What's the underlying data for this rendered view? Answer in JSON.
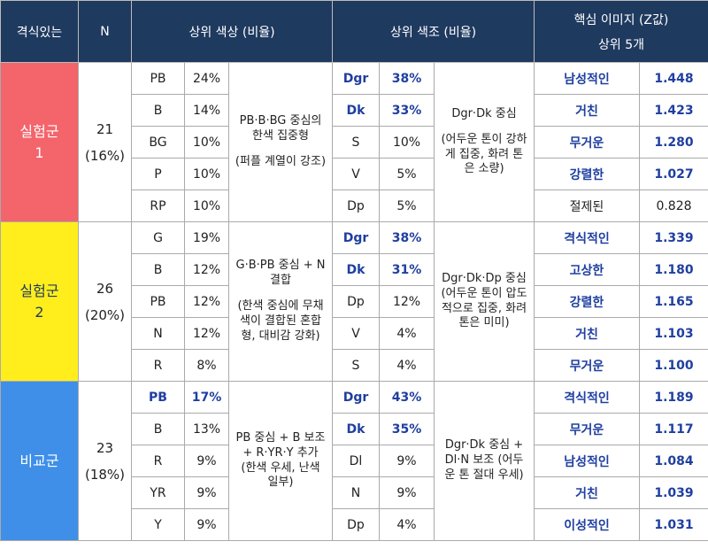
{
  "header": {
    "group": "격식있는",
    "n": "N",
    "colors": "상위 색상 (비율)",
    "tones": "상위 색조 (비율)",
    "images": "핵심 이미지 (Z값)",
    "images_sub": "상위 5개"
  },
  "groups": [
    {
      "label": [
        "실험군",
        "1"
      ],
      "n": "21",
      "n_pct": "(16%)",
      "colors": [
        [
          "PB",
          "24%"
        ],
        [
          "B",
          "14%"
        ],
        [
          "BG",
          "10%"
        ],
        [
          "P",
          "10%"
        ],
        [
          "RP",
          "10%"
        ]
      ],
      "color_desc": [
        "PB·B·BG 중심의 한색 집중형",
        "(퍼플 계열이 강조)"
      ],
      "tones": [
        [
          "Dgr",
          "38%"
        ],
        [
          "Dk",
          "33%"
        ],
        [
          "S",
          "10%"
        ],
        [
          "V",
          "5%"
        ],
        [
          "Dp",
          "5%"
        ]
      ],
      "tone_desc": [
        "Dgr·Dk 중심",
        "(어두운 톤이 강하게 집중, 화려 톤은 소량)"
      ],
      "images": [
        [
          "남성적인",
          "1.448"
        ],
        [
          "거친",
          "1.423"
        ],
        [
          "무거운",
          "1.280"
        ],
        [
          "강렬한",
          "1.027"
        ],
        [
          "절제된",
          "0.828"
        ]
      ]
    },
    {
      "label": [
        "실험군",
        "2"
      ],
      "n": "26",
      "n_pct": "(20%)",
      "colors": [
        [
          "G",
          "19%"
        ],
        [
          "B",
          "12%"
        ],
        [
          "PB",
          "12%"
        ],
        [
          "N",
          "12%"
        ],
        [
          "R",
          "8%"
        ]
      ],
      "color_desc": [
        "G·B·PB 중심 + N 결합",
        "(한색 중심에 무채색이 결합된 혼합형, 대비감 강화)"
      ],
      "tones": [
        [
          "Dgr",
          "38%"
        ],
        [
          "Dk",
          "31%"
        ],
        [
          "Dp",
          "12%"
        ],
        [
          "V",
          "4%"
        ],
        [
          "S",
          "4%"
        ]
      ],
      "tone_desc": [
        "Dgr·Dk·Dp 중심 (어두운 톤이 압도적으로 집중, 화려 톤은 미미)"
      ],
      "images": [
        [
          "격식적인",
          "1.339"
        ],
        [
          "고상한",
          "1.180"
        ],
        [
          "강렬한",
          "1.165"
        ],
        [
          "거친",
          "1.103"
        ],
        [
          "무거운",
          "1.100"
        ]
      ]
    },
    {
      "label": [
        "비교군"
      ],
      "n": "23",
      "n_pct": "(18%)",
      "colors": [
        [
          "PB",
          "17%"
        ],
        [
          "B",
          "13%"
        ],
        [
          "R",
          "9%"
        ],
        [
          "YR",
          "9%"
        ],
        [
          "Y",
          "9%"
        ]
      ],
      "color_desc": [
        "PB 중심 + B 보조 + R·YR·Y 추가 (한색 우세, 난색 일부)"
      ],
      "tones": [
        [
          "Dgr",
          "43%"
        ],
        [
          "Dk",
          "35%"
        ],
        [
          "Dl",
          "9%"
        ],
        [
          "N",
          "9%"
        ],
        [
          "Dp",
          "4%"
        ]
      ],
      "tone_desc": [
        "Dgr·Dk 중심 + Dl·N 보조 (어두운 톤 절대 우세)"
      ],
      "images": [
        [
          "격식적인",
          "1.189"
        ],
        [
          "무거운",
          "1.117"
        ],
        [
          "남성적인",
          "1.084"
        ],
        [
          "거친",
          "1.039"
        ],
        [
          "이성적인",
          "1.031"
        ]
      ]
    }
  ]
}
